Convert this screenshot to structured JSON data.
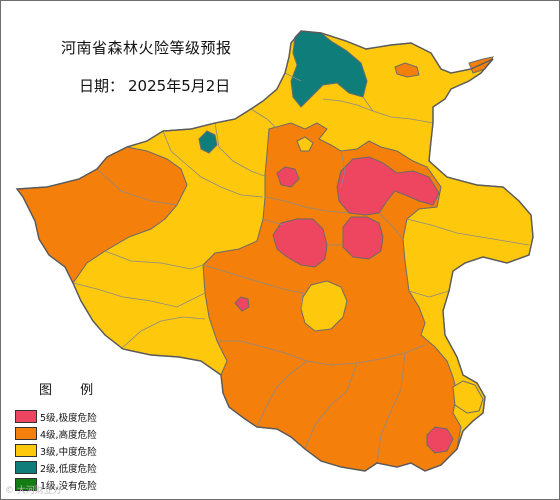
{
  "title": "河南省森林火险等级预报",
  "date": {
    "label": "日期：",
    "value": "2025年5月2日"
  },
  "legend": {
    "title": "图 例",
    "items": [
      {
        "label": "5级,极度危险",
        "color": "#ee4560"
      },
      {
        "label": "4级,高度危险",
        "color": "#f47f0a"
      },
      {
        "label": "3级,中度危险",
        "color": "#fec80d"
      },
      {
        "label": "2级,低度危险",
        "color": "#0f7d7a"
      },
      {
        "label": "1级,没有危险",
        "color": "#137d13"
      }
    ]
  },
  "watermark": "© 大河财立方"
}
